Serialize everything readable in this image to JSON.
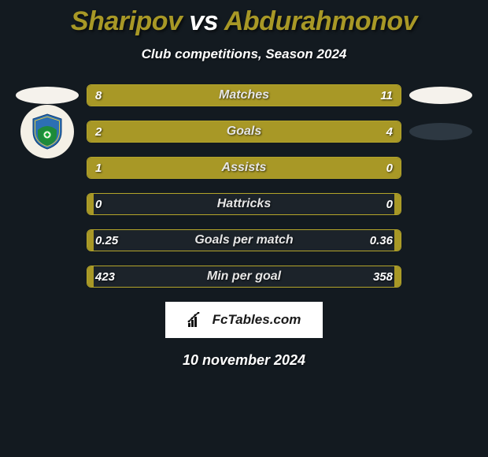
{
  "title": {
    "player1": "Sharipov",
    "vs": "vs",
    "player2": "Abdurahmonov",
    "color1": "#a89826",
    "color_vs": "#ffffff",
    "color2": "#a89826"
  },
  "subtitle": "Club competitions, Season 2024",
  "background_color": "#131a20",
  "accent_color": "#a89826",
  "border_color": "#b3a42a",
  "footer_brand": "FcTables.com",
  "date": "10 november 2024",
  "badges": {
    "left": [
      {
        "type": "ellipse",
        "color": "#f5f2ec"
      },
      {
        "type": "crest"
      }
    ],
    "right": [
      {
        "type": "ellipse",
        "color": "#f5f2ec"
      },
      {
        "type": "ellipse",
        "color": "#2d3842"
      }
    ]
  },
  "rows": [
    {
      "label": "Matches",
      "left_val": "8",
      "right_val": "11",
      "left_pct": 42,
      "right_pct": 58
    },
    {
      "label": "Goals",
      "left_val": "2",
      "right_val": "4",
      "left_pct": 33,
      "right_pct": 67
    },
    {
      "label": "Assists",
      "left_val": "1",
      "right_val": "0",
      "left_pct": 80,
      "right_pct": 20
    },
    {
      "label": "Hattricks",
      "left_val": "0",
      "right_val": "0",
      "left_pct": 2,
      "right_pct": 2
    },
    {
      "label": "Goals per match",
      "left_val": "0.25",
      "right_val": "0.36",
      "left_pct": 2,
      "right_pct": 2
    },
    {
      "label": "Min per goal",
      "left_val": "423",
      "right_val": "358",
      "left_pct": 2,
      "right_pct": 2
    }
  ]
}
